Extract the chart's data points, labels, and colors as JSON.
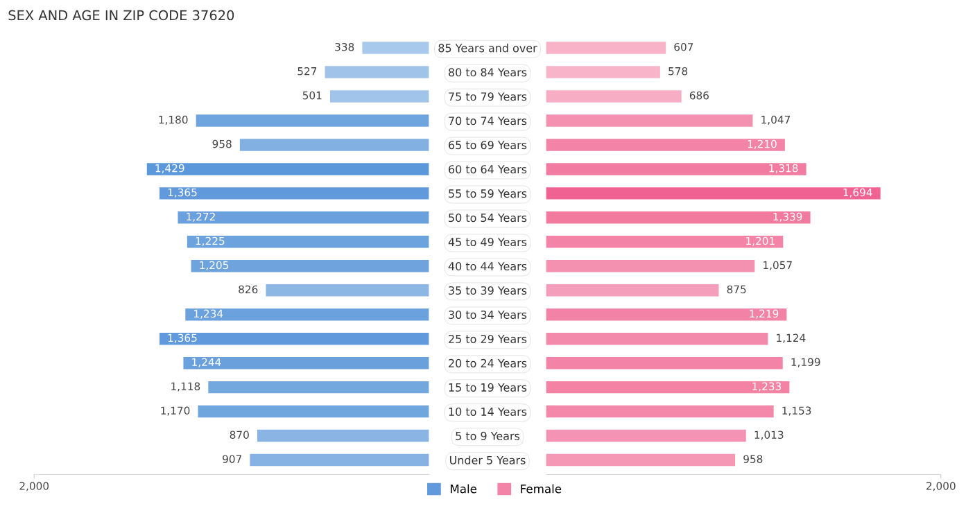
{
  "chart_data": [
    {
      "type": "bar",
      "orientation": "horizontal",
      "title": "SEX AND AGE IN ZIP CODE 37620",
      "categories": [
        "85 Years and over",
        "80 to 84 Years",
        "75 to 79 Years",
        "70 to 74 Years",
        "65 to 69 Years",
        "60 to 64 Years",
        "55 to 59 Years",
        "50 to 54 Years",
        "45 to 49 Years",
        "40 to 44 Years",
        "35 to 39 Years",
        "30 to 34 Years",
        "25 to 29 Years",
        "20 to 24 Years",
        "15 to 19 Years",
        "10 to 14 Years",
        "5 to 9 Years",
        "Under 5 Years"
      ],
      "series": [
        {
          "name": "Male",
          "color": "#6099dc",
          "values": [
            338,
            527,
            501,
            1180,
            958,
            1429,
            1365,
            1272,
            1225,
            1205,
            826,
            1234,
            1365,
            1244,
            1118,
            1170,
            870,
            907
          ],
          "value_labels": [
            "338",
            "527",
            "501",
            "1,180",
            "958",
            "1,429",
            "1,365",
            "1,272",
            "1,225",
            "1,205",
            "826",
            "1,234",
            "1,365",
            "1,244",
            "1,118",
            "1,170",
            "870",
            "907"
          ],
          "colors": [
            "#a9c9ec",
            "#a0c3ea",
            "#a1c4ea",
            "#6fa5de",
            "#82b0e2",
            "#5b97db",
            "#6099dc",
            "#69a0dd",
            "#6ca2de",
            "#6ea3de",
            "#8cb6e4",
            "#6ba1dd",
            "#6099dc",
            "#6aa1dd",
            "#73a8df",
            "#70a6de",
            "#89b4e3",
            "#86b2e3"
          ]
        }
      ],
      "xlim": [
        2000,
        0
      ],
      "xticks": [
        {
          "value": 2000,
          "label": "2,000"
        }
      ],
      "legend": "bottom right",
      "grid": false
    },
    {
      "type": "bar",
      "orientation": "horizontal",
      "categories": [
        null,
        null,
        null,
        null,
        null,
        null,
        null,
        null,
        null,
        null,
        null,
        null,
        null,
        null,
        null,
        null,
        null,
        null
      ],
      "series": [
        {
          "name": "Female",
          "color": "#f383a7",
          "values": [
            607,
            578,
            686,
            1047,
            1210,
            1318,
            1694,
            1339,
            1201,
            1057,
            875,
            1219,
            1124,
            1199,
            1233,
            1153,
            1013,
            958
          ],
          "value_labels": [
            "607",
            "578",
            "686",
            "1,047",
            "1,210",
            "1,318",
            "1,694",
            "1,339",
            "1,201",
            "1,057",
            "875",
            "1,219",
            "1,124",
            "1,199",
            "1,233",
            "1,153",
            "1,013",
            "958"
          ],
          "colors": [
            "#f8b3c9",
            "#f8b5ca",
            "#f7adc4",
            "#f491b1",
            "#f383a7",
            "#f27ba1",
            "#f06292",
            "#f27a9f",
            "#f384a7",
            "#f490b0",
            "#f59ebb",
            "#f383a6",
            "#f48aab",
            "#f384a7",
            "#f382a5",
            "#f488aa",
            "#f493b3",
            "#f598b6"
          ]
        }
      ],
      "xlim": [
        0,
        2000
      ],
      "xticks": [
        {
          "value": 2000,
          "label": "2,000"
        }
      ],
      "legend": "bottom left",
      "grid": false
    }
  ]
}
